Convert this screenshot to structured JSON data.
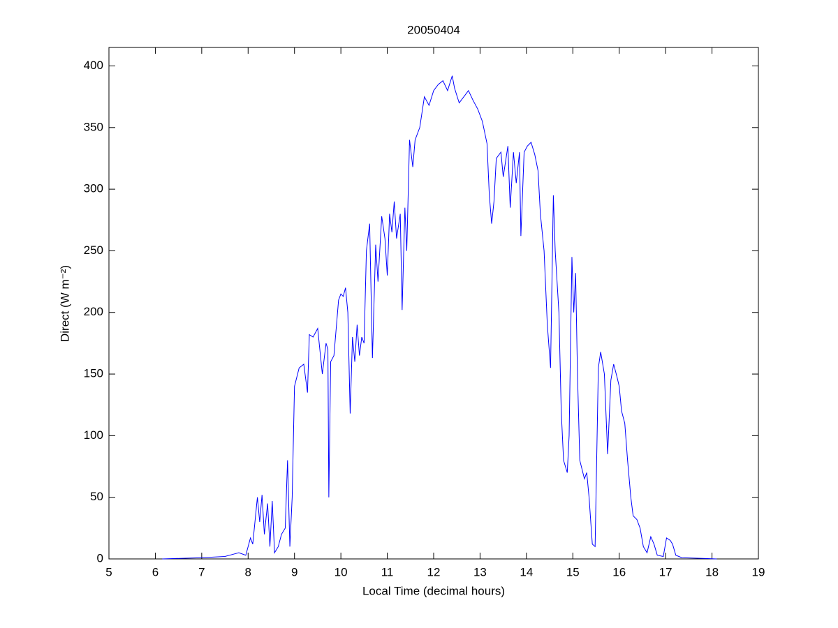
{
  "chart_data": {
    "type": "line",
    "title": "20050404",
    "xlabel": "Local Time (decimal hours)",
    "ylabel": "Direct (W m⁻²)",
    "color": "#0000ff",
    "x": [
      6.15,
      7.0,
      7.5,
      7.7,
      7.8,
      7.95,
      8.0,
      8.05,
      8.1,
      8.2,
      8.25,
      8.3,
      8.35,
      8.42,
      8.47,
      8.52,
      8.57,
      8.65,
      8.72,
      8.8,
      8.85,
      8.9,
      8.95,
      9.0,
      9.1,
      9.2,
      9.28,
      9.32,
      9.4,
      9.5,
      9.6,
      9.68,
      9.72,
      9.74,
      9.78,
      9.85,
      9.95,
      10.0,
      10.05,
      10.1,
      10.15,
      10.2,
      10.25,
      10.3,
      10.35,
      10.4,
      10.45,
      10.5,
      10.55,
      10.62,
      10.68,
      10.75,
      10.8,
      10.88,
      10.95,
      11.0,
      11.05,
      11.1,
      11.15,
      11.2,
      11.28,
      11.32,
      11.38,
      11.42,
      11.48,
      11.55,
      11.6,
      11.7,
      11.8,
      11.9,
      12.0,
      12.1,
      12.2,
      12.3,
      12.4,
      12.45,
      12.55,
      12.65,
      12.75,
      12.85,
      12.95,
      13.05,
      13.15,
      13.2,
      13.25,
      13.3,
      13.35,
      13.45,
      13.5,
      13.6,
      13.65,
      13.72,
      13.78,
      13.85,
      13.88,
      13.95,
      14.02,
      14.1,
      14.18,
      14.25,
      14.3,
      14.38,
      14.45,
      14.52,
      14.58,
      14.62,
      14.7,
      14.75,
      14.8,
      14.88,
      14.92,
      14.98,
      15.02,
      15.06,
      15.1,
      15.15,
      15.25,
      15.3,
      15.35,
      15.42,
      15.48,
      15.55,
      15.6,
      15.68,
      15.75,
      15.82,
      15.88,
      15.95,
      16.0,
      16.05,
      16.12,
      16.18,
      16.25,
      16.3,
      16.38,
      16.45,
      16.52,
      16.6,
      16.68,
      16.75,
      16.82,
      16.95,
      17.02,
      17.1,
      17.15,
      17.22,
      17.35,
      18.1
    ],
    "values": [
      0,
      1,
      2,
      4,
      5,
      3,
      10,
      17,
      12,
      50,
      30,
      52,
      20,
      45,
      10,
      47,
      5,
      10,
      20,
      25,
      80,
      10,
      50,
      140,
      155,
      158,
      135,
      182,
      180,
      187,
      150,
      175,
      170,
      50,
      160,
      165,
      210,
      215,
      213,
      220,
      200,
      118,
      180,
      160,
      190,
      165,
      180,
      175,
      250,
      272,
      163,
      255,
      225,
      278,
      260,
      230,
      280,
      265,
      290,
      260,
      280,
      202,
      285,
      250,
      340,
      318,
      340,
      350,
      375,
      368,
      380,
      385,
      388,
      380,
      392,
      382,
      370,
      375,
      380,
      372,
      365,
      355,
      337,
      295,
      272,
      290,
      325,
      330,
      310,
      335,
      285,
      330,
      305,
      330,
      262,
      330,
      335,
      338,
      328,
      315,
      280,
      250,
      190,
      155,
      295,
      250,
      200,
      120,
      80,
      70,
      100,
      245,
      200,
      232,
      150,
      80,
      65,
      70,
      50,
      12,
      10,
      155,
      168,
      150,
      85,
      145,
      158,
      148,
      140,
      120,
      110,
      80,
      50,
      35,
      32,
      25,
      10,
      5,
      18,
      12,
      3,
      2,
      17,
      15,
      12,
      3,
      1,
      0
    ],
    "xlim": [
      5,
      19
    ],
    "xticks": [
      5,
      6,
      7,
      8,
      9,
      10,
      11,
      12,
      13,
      14,
      15,
      16,
      17,
      18,
      19
    ],
    "ylim": [
      0,
      415
    ],
    "yticks": [
      0,
      50,
      100,
      150,
      200,
      250,
      300,
      350,
      400
    ]
  }
}
